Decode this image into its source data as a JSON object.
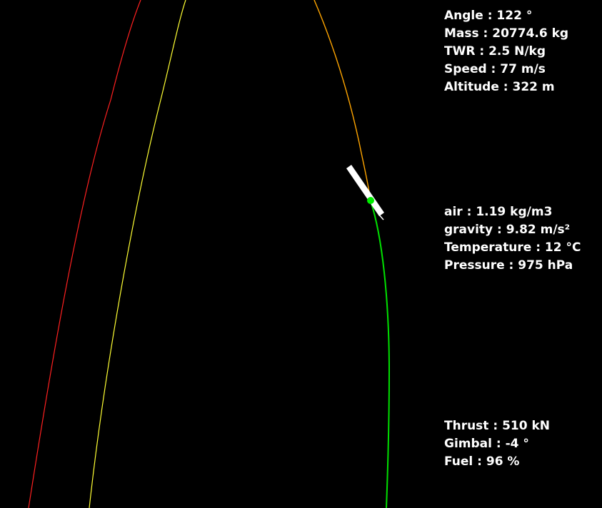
{
  "flight": {
    "angle": "Angle : 122 °",
    "mass": "Mass : 20774.6 kg",
    "twr": "TWR : 2.5 N/kg",
    "speed": "Speed : 77 m/s",
    "altitude": "Altitude : 322 m"
  },
  "environment": {
    "air": "air : 1.19 kg/m3",
    "gravity": "gravity : 9.82 m/s²",
    "temperature": "Temperature : 12 °C",
    "pressure": "Pressure : 975 hPa"
  },
  "engine": {
    "thrust": "Thrust : 510 kN",
    "gimbal": "Gimbal : -4 °",
    "fuel": "Fuel : 96 %"
  },
  "colors": {
    "background": "#000000",
    "hud_text": "#ffffff",
    "flown_path": "#00e000",
    "predicted_path_near": "#ffa500",
    "predicted_path_outer_yellow": "#ffff33",
    "predicted_path_outer_red": "#ff2020",
    "rocket_body": "#ffffff",
    "rocket_marker": "#00ee00"
  }
}
